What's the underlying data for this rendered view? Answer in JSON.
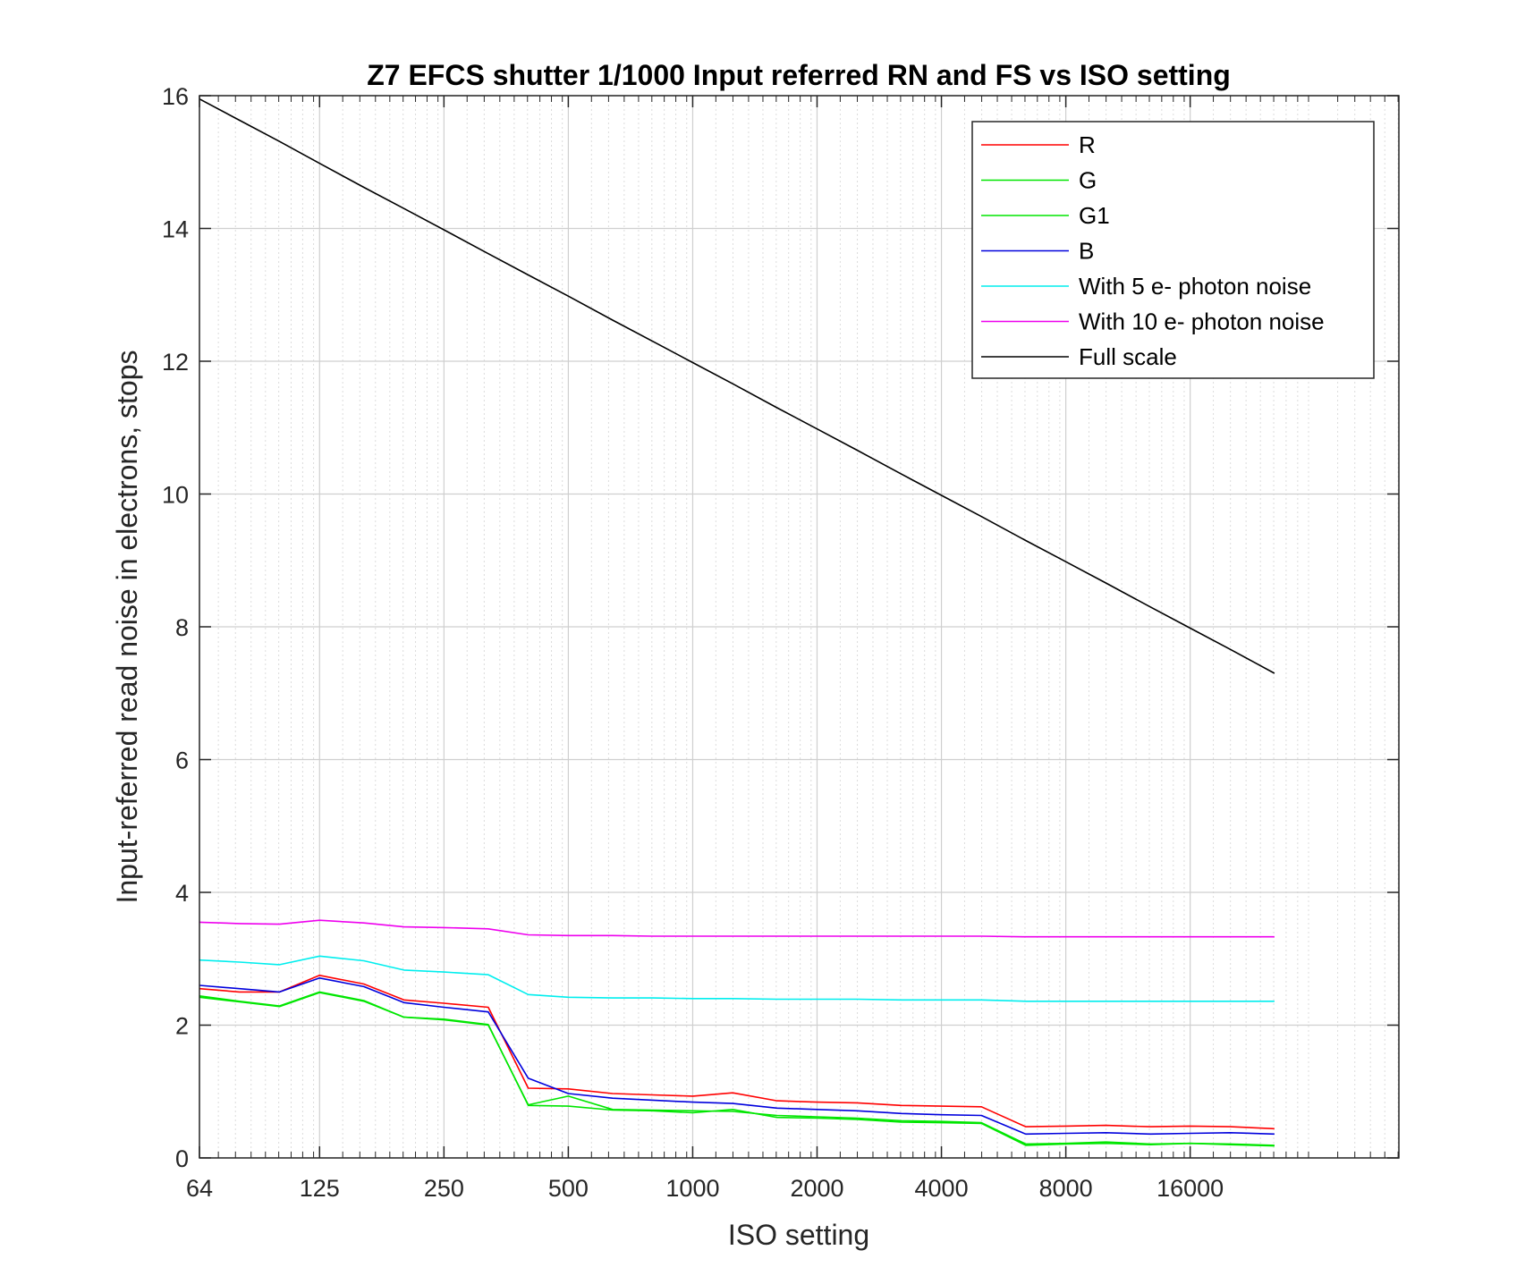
{
  "chart_data": {
    "type": "line",
    "title": "Z7 EFCS shutter 1/1000 Input referred RN and FS vs ISO setting",
    "xlabel": "ISO setting",
    "ylabel": "Input-referred read noise in electrons, stops",
    "xscale": "log2",
    "xlim": [
      64,
      51200
    ],
    "ylim": [
      0,
      16
    ],
    "xticks": [
      64,
      125,
      250,
      500,
      1000,
      2000,
      4000,
      8000,
      16000
    ],
    "xtick_labels": [
      "64",
      "125",
      "250",
      "500",
      "1000",
      "2000",
      "4000",
      "8000",
      "16000"
    ],
    "yticks": [
      0,
      2,
      4,
      6,
      8,
      10,
      12,
      14,
      16
    ],
    "ytick_labels": [
      "0",
      "2",
      "4",
      "6",
      "8",
      "10",
      "12",
      "14",
      "16"
    ],
    "grid": true,
    "legend_position": "top-right",
    "x": [
      64,
      80,
      100,
      125,
      160,
      200,
      250,
      320,
      400,
      500,
      640,
      800,
      1000,
      1250,
      1600,
      2000,
      2500,
      3200,
      4000,
      5000,
      6400,
      8000,
      10000,
      12800,
      16000,
      20000,
      25600
    ],
    "series": [
      {
        "name": "R",
        "color": "#ff0000",
        "values": [
          2.55,
          2.5,
          2.5,
          2.75,
          2.62,
          2.38,
          2.33,
          2.27,
          1.05,
          1.04,
          0.97,
          0.95,
          0.93,
          0.98,
          0.86,
          0.84,
          0.83,
          0.79,
          0.78,
          0.77,
          0.47,
          0.48,
          0.49,
          0.47,
          0.48,
          0.47,
          0.44
        ]
      },
      {
        "name": "G",
        "color": "#00e600",
        "values": [
          2.42,
          2.35,
          2.28,
          2.49,
          2.36,
          2.12,
          2.08,
          2.0,
          0.8,
          0.93,
          0.73,
          0.72,
          0.71,
          0.7,
          0.64,
          0.62,
          0.6,
          0.56,
          0.55,
          0.53,
          0.21,
          0.22,
          0.24,
          0.21,
          0.22,
          0.21,
          0.19
        ]
      },
      {
        "name": "G1",
        "color": "#00e600",
        "values": [
          2.44,
          2.36,
          2.29,
          2.5,
          2.37,
          2.12,
          2.09,
          2.01,
          0.79,
          0.78,
          0.72,
          0.71,
          0.68,
          0.73,
          0.61,
          0.6,
          0.58,
          0.54,
          0.53,
          0.52,
          0.19,
          0.21,
          0.22,
          0.2,
          0.22,
          0.2,
          0.18
        ]
      },
      {
        "name": "B",
        "color": "#0000dd",
        "values": [
          2.6,
          2.55,
          2.5,
          2.71,
          2.58,
          2.34,
          2.27,
          2.2,
          1.2,
          0.97,
          0.9,
          0.87,
          0.84,
          0.82,
          0.75,
          0.73,
          0.71,
          0.67,
          0.65,
          0.64,
          0.36,
          0.37,
          0.38,
          0.36,
          0.37,
          0.38,
          0.36
        ]
      },
      {
        "name": "With 5 e- photon noise",
        "color": "#00eeee",
        "values": [
          2.98,
          2.95,
          2.91,
          3.04,
          2.97,
          2.83,
          2.8,
          2.76,
          2.46,
          2.42,
          2.41,
          2.41,
          2.4,
          2.4,
          2.39,
          2.39,
          2.39,
          2.38,
          2.38,
          2.38,
          2.36,
          2.36,
          2.36,
          2.36,
          2.36,
          2.36,
          2.36
        ]
      },
      {
        "name": "With 10 e- photon noise",
        "color": "#ee00ee",
        "values": [
          3.55,
          3.53,
          3.52,
          3.58,
          3.54,
          3.48,
          3.47,
          3.45,
          3.36,
          3.35,
          3.35,
          3.34,
          3.34,
          3.34,
          3.34,
          3.34,
          3.34,
          3.34,
          3.34,
          3.34,
          3.33,
          3.33,
          3.33,
          3.33,
          3.33,
          3.33,
          3.33
        ]
      },
      {
        "name": "Full scale",
        "color": "#000000",
        "values": [
          15.95,
          15.63,
          15.31,
          14.98,
          14.62,
          14.3,
          13.98,
          13.62,
          13.3,
          12.98,
          12.62,
          12.3,
          11.98,
          11.66,
          11.3,
          10.98,
          10.66,
          10.3,
          9.98,
          9.66,
          9.3,
          8.98,
          8.66,
          8.3,
          7.98,
          7.66,
          7.3
        ]
      }
    ]
  }
}
